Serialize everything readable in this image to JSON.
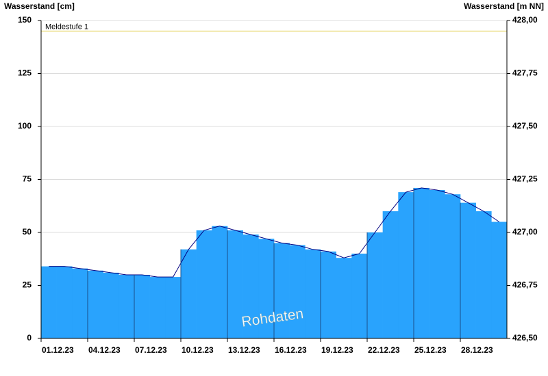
{
  "chart_data": {
    "type": "area",
    "y_label": "Wasserstand [cm]",
    "y2_label": "Wasserstand [m NN]",
    "categories": [
      "01.12.23",
      null,
      null,
      "04.12.23",
      null,
      null,
      "07.12.23",
      null,
      null,
      "10.12.23",
      null,
      null,
      "13.12.23",
      null,
      null,
      "16.12.23",
      null,
      null,
      "19.12.23",
      null,
      null,
      "22.12.23",
      null,
      null,
      "25.12.23",
      null,
      null,
      "28.12.23",
      null,
      null
    ],
    "series": [
      {
        "name": "Wasserstand",
        "color": "#29a3fd",
        "line_color": "#000080",
        "values": [
          34,
          34,
          33,
          32,
          31,
          30,
          30,
          29,
          29,
          42,
          51,
          53,
          51,
          49,
          47,
          45,
          44,
          42,
          41,
          38,
          40,
          50,
          60,
          69,
          71,
          70,
          68,
          64,
          60,
          55
        ]
      }
    ],
    "ylim": [
      0,
      150
    ],
    "yticks": [
      0,
      25,
      50,
      75,
      100,
      125,
      150
    ],
    "y2lim": [
      426.5,
      428.0
    ],
    "y2ticks": [
      {
        "value": 426.5,
        "label": "426,50"
      },
      {
        "value": 426.75,
        "label": "426,75"
      },
      {
        "value": 427.0,
        "label": "427,00"
      },
      {
        "value": 427.25,
        "label": "427,25"
      },
      {
        "value": 427.5,
        "label": "427,50"
      },
      {
        "value": 427.75,
        "label": "427,75"
      },
      {
        "value": 428.0,
        "label": "428,00"
      }
    ],
    "grid": true,
    "threshold": {
      "label": "Meldestufe 1",
      "value": 145,
      "color": "#e6d66a"
    },
    "watermark": "Rohdaten"
  }
}
